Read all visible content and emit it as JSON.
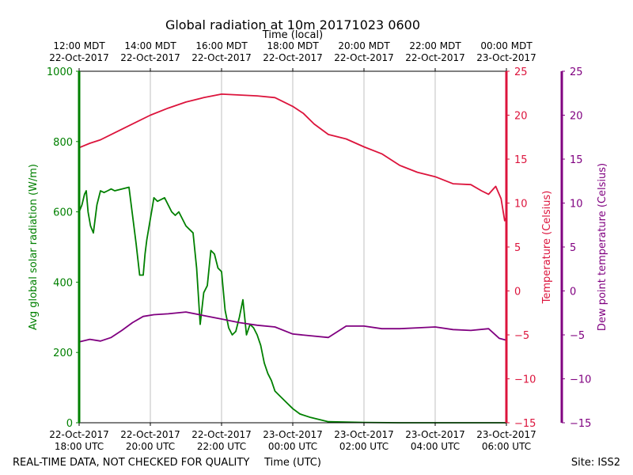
{
  "chart_data": {
    "type": "line",
    "title": "Global radiation at 10m 20171023 0600",
    "top_axis_label": "Time (local)",
    "bottom_axis_label": "Time (UTC)",
    "footer_left": "REAL-TIME DATA, NOT CHECKED FOR QUALITY",
    "footer_right": "Site: ISS2",
    "x_range_hours": [
      0,
      12
    ],
    "x_tick_hours": [
      0,
      2,
      4,
      6,
      8,
      10,
      12
    ],
    "x_ticks_utc": [
      {
        "line1": "22-Oct-2017",
        "line2": "18:00 UTC"
      },
      {
        "line1": "22-Oct-2017",
        "line2": "20:00 UTC"
      },
      {
        "line1": "22-Oct-2017",
        "line2": "22:00 UTC"
      },
      {
        "line1": "23-Oct-2017",
        "line2": "00:00 UTC"
      },
      {
        "line1": "23-Oct-2017",
        "line2": "02:00 UTC"
      },
      {
        "line1": "23-Oct-2017",
        "line2": "04:00 UTC"
      },
      {
        "line1": "23-Oct-2017",
        "line2": "06:00 UTC"
      }
    ],
    "x_ticks_local": [
      {
        "line1": "12:00 MDT",
        "line2": "22-Oct-2017"
      },
      {
        "line1": "14:00 MDT",
        "line2": "22-Oct-2017"
      },
      {
        "line1": "16:00 MDT",
        "line2": "22-Oct-2017"
      },
      {
        "line1": "18:00 MDT",
        "line2": "22-Oct-2017"
      },
      {
        "line1": "20:00 MDT",
        "line2": "22-Oct-2017"
      },
      {
        "line1": "22:00 MDT",
        "line2": "22-Oct-2017"
      },
      {
        "line1": "00:00 MDT",
        "line2": "23-Oct-2017"
      }
    ],
    "axes": {
      "radiation": {
        "label": "Avg global solar radiation (W/m)",
        "ylim": [
          0,
          1000
        ],
        "ticks": [
          "0",
          "200",
          "400",
          "600",
          "800",
          "1000"
        ],
        "color": "#008000"
      },
      "temperature": {
        "label": "Temperature (Celsius)",
        "ylim": [
          -15,
          25
        ],
        "ticks": [
          "−15",
          "−10",
          "−5",
          "0",
          "5",
          "10",
          "15",
          "20",
          "25"
        ],
        "color": "#dc143c"
      },
      "dewpoint": {
        "label": "Dew point temperature (Celsius)",
        "ylim": [
          -15,
          25
        ],
        "ticks": [
          "−15",
          "−10",
          "−5",
          "0",
          "5",
          "10",
          "15",
          "20",
          "25"
        ],
        "color": "#800080"
      }
    },
    "series": [
      {
        "name": "Avg global solar radiation",
        "axis": "radiation",
        "color": "#008000",
        "x": [
          0.0,
          0.08,
          0.15,
          0.2,
          0.25,
          0.32,
          0.4,
          0.5,
          0.6,
          0.7,
          0.8,
          0.9,
          1.0,
          1.2,
          1.4,
          1.6,
          1.7,
          1.8,
          1.85,
          1.9,
          2.0,
          2.05,
          2.1,
          2.2,
          2.4,
          2.6,
          2.7,
          2.8,
          2.9,
          3.0,
          3.1,
          3.2,
          3.3,
          3.4,
          3.5,
          3.6,
          3.7,
          3.8,
          3.9,
          4.0,
          4.1,
          4.2,
          4.3,
          4.4,
          4.5,
          4.6,
          4.7,
          4.8,
          4.9,
          5.0,
          5.1,
          5.2,
          5.3,
          5.4,
          5.5,
          5.6,
          5.8,
          6.0,
          6.2,
          6.5,
          7.0,
          8.0,
          9.0,
          10.0,
          11.0,
          12.0
        ],
        "y": [
          600,
          620,
          650,
          660,
          600,
          560,
          540,
          620,
          660,
          655,
          660,
          665,
          660,
          665,
          670,
          510,
          420,
          420,
          480,
          520,
          580,
          610,
          640,
          630,
          640,
          600,
          590,
          600,
          580,
          560,
          550,
          540,
          440,
          280,
          370,
          390,
          490,
          480,
          440,
          430,
          320,
          270,
          250,
          260,
          300,
          350,
          250,
          280,
          270,
          250,
          220,
          170,
          140,
          120,
          90,
          80,
          60,
          40,
          25,
          15,
          3,
          1,
          0,
          0,
          0,
          0
        ]
      },
      {
        "name": "Temperature",
        "axis": "temperature",
        "color": "#dc143c",
        "x": [
          0.0,
          0.3,
          0.6,
          1.0,
          1.5,
          2.0,
          2.5,
          3.0,
          3.5,
          4.0,
          4.5,
          5.0,
          5.5,
          6.0,
          6.3,
          6.6,
          7.0,
          7.5,
          8.0,
          8.5,
          9.0,
          9.5,
          10.0,
          10.5,
          11.0,
          11.3,
          11.5,
          11.7,
          11.85,
          11.95,
          12.0
        ],
        "y": [
          16.3,
          16.8,
          17.2,
          18.0,
          19.0,
          20.0,
          20.8,
          21.5,
          22.0,
          22.4,
          22.3,
          22.2,
          22.0,
          21.0,
          20.2,
          19.0,
          17.8,
          17.3,
          16.4,
          15.6,
          14.3,
          13.5,
          13.0,
          12.2,
          12.1,
          11.4,
          11.0,
          11.9,
          10.5,
          8.0,
          8.4
        ]
      },
      {
        "name": "Dew point temperature",
        "axis": "dewpoint",
        "color": "#800080",
        "x": [
          0.0,
          0.3,
          0.6,
          0.9,
          1.2,
          1.5,
          1.8,
          2.1,
          2.5,
          3.0,
          3.5,
          4.0,
          4.5,
          5.0,
          5.5,
          6.0,
          6.5,
          7.0,
          7.5,
          8.0,
          8.5,
          9.0,
          9.5,
          10.0,
          10.5,
          11.0,
          11.5,
          11.8,
          12.0
        ],
        "y": [
          -5.8,
          -5.5,
          -5.7,
          -5.3,
          -4.5,
          -3.6,
          -2.9,
          -2.7,
          -2.6,
          -2.4,
          -2.8,
          -3.2,
          -3.6,
          -3.9,
          -4.1,
          -4.9,
          -5.1,
          -5.3,
          -4.0,
          -4.0,
          -4.3,
          -4.3,
          -4.2,
          -4.1,
          -4.4,
          -4.5,
          -4.3,
          -5.4,
          -5.6
        ]
      }
    ]
  }
}
